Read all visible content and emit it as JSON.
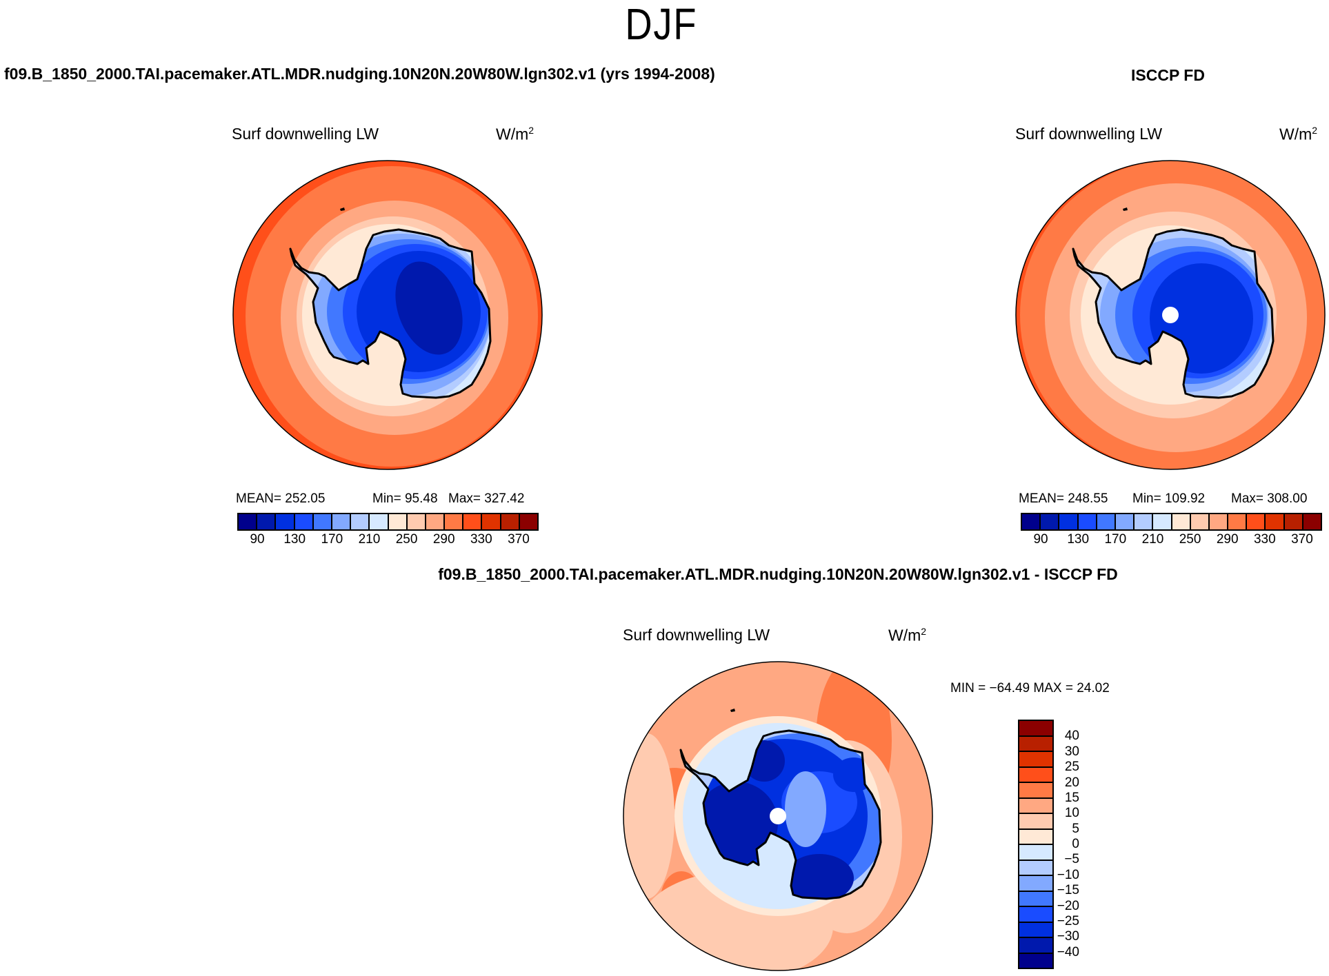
{
  "page_title": "DJF",
  "panels": {
    "model": {
      "title": "f09.B_1850_2000.TAI.pacemaker.ATL.MDR.nudging.10N20N.20W80W.lgn302.v1 (yrs 1994-2008)",
      "variable": "Surf downwelling LW",
      "units_base": "W/m",
      "units_exp": "2",
      "mean_label": "MEAN= 252.05",
      "min_label": "Min=  95.48",
      "max_label": "Max= 327.42"
    },
    "obs": {
      "title": "ISCCP FD",
      "variable": "Surf downwelling LW",
      "units_base": "W/m",
      "units_exp": "2",
      "mean_label": "MEAN= 248.55",
      "min_label": "Min= 109.92",
      "max_label": "Max= 308.00"
    },
    "diff": {
      "title": "f09.B_1850_2000.TAI.pacemaker.ATL.MDR.nudging.10N20N.20W80W.lgn302.v1 - ISCCP FD",
      "variable": "Surf downwelling LW",
      "units_base": "W/m",
      "units_exp": "2",
      "minmax_label": "MIN = −64.49 MAX =  24.02"
    }
  },
  "chart_data": [
    {
      "type": "heatmap",
      "title": "f09.B_1850_2000.TAI.pacemaker.ATL.MDR.nudging.10N20N.20W80W.lgn302.v1 (yrs 1994-2008)",
      "subtitle": "Surf downwelling LW",
      "units": "W/m2",
      "projection": "south polar stereographic",
      "stats": {
        "mean": 252.05,
        "min": 95.48,
        "max": 327.42
      },
      "levels": [
        90,
        110,
        130,
        150,
        170,
        190,
        210,
        230,
        250,
        270,
        290,
        310,
        330,
        350,
        370
      ],
      "tick_labels": [
        "90",
        "130",
        "170",
        "210",
        "250",
        "290",
        "330",
        "370"
      ]
    },
    {
      "type": "heatmap",
      "title": "ISCCP FD",
      "subtitle": "Surf downwelling LW",
      "units": "W/m2",
      "projection": "south polar stereographic",
      "stats": {
        "mean": 248.55,
        "min": 109.92,
        "max": 308.0
      },
      "levels": [
        90,
        110,
        130,
        150,
        170,
        190,
        210,
        230,
        250,
        270,
        290,
        310,
        330,
        350,
        370
      ],
      "tick_labels": [
        "90",
        "130",
        "170",
        "210",
        "250",
        "290",
        "330",
        "370"
      ]
    },
    {
      "type": "heatmap",
      "title": "f09.B_1850_2000.TAI.pacemaker.ATL.MDR.nudging.10N20N.20W80W.lgn302.v1 - ISCCP FD",
      "subtitle": "Surf downwelling LW",
      "units": "W/m2",
      "projection": "south polar stereographic",
      "stats": {
        "min": -64.49,
        "max": 24.02
      },
      "levels": [
        40,
        30,
        25,
        20,
        15,
        10,
        5,
        0,
        -5,
        -10,
        -15,
        -20,
        -25,
        -30,
        -40
      ],
      "tick_labels": [
        "40",
        "30",
        "25",
        "20",
        "15",
        "10",
        "5",
        "0",
        "−5",
        "−10",
        "−15",
        "−20",
        "−25",
        "−30",
        "−40"
      ]
    }
  ],
  "colors": [
    "#00008c",
    "#0019ad",
    "#0030e0",
    "#1a4cff",
    "#4178ff",
    "#82a9ff",
    "#b3ccff",
    "#d6e9ff",
    "#ffe9d6",
    "#ffcbb0",
    "#ffa882",
    "#ff7a45",
    "#ff4f1a",
    "#e03300",
    "#b82000",
    "#8b0000"
  ]
}
